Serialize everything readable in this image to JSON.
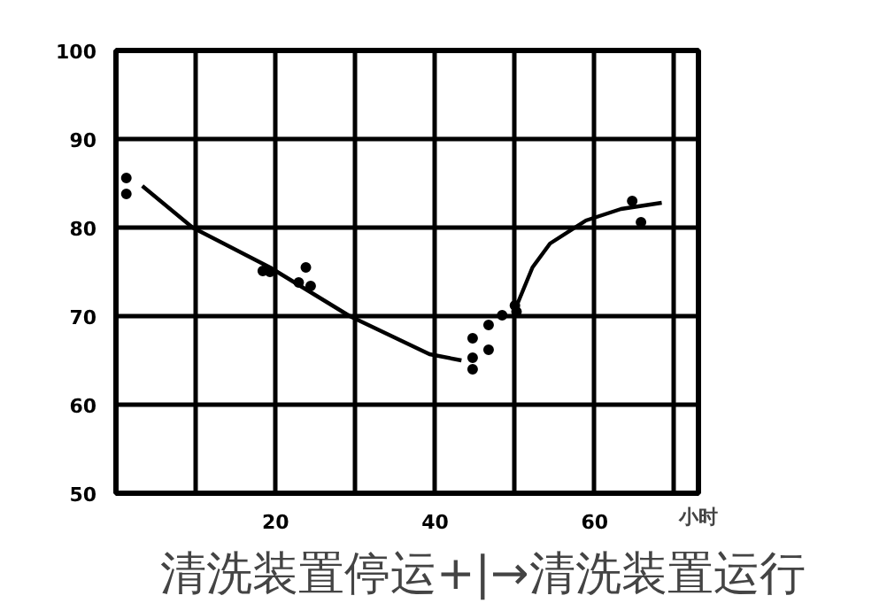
{
  "chart_data": {
    "type": "scatter",
    "xlabel": "小时",
    "annotations": [
      "清洗装置停运+|→清洗装置运行"
    ],
    "xlim": [
      0,
      73
    ],
    "ylim": [
      50,
      100
    ],
    "xticks": [
      {
        "value": 10,
        "label": null
      },
      20,
      {
        "value": 30,
        "label": null
      },
      40,
      {
        "value": 50,
        "label": null
      },
      60,
      {
        "value": 70,
        "label": null
      }
    ],
    "yticks": [
      50,
      60,
      70,
      80,
      90,
      100
    ],
    "grid": true,
    "marker": "circle",
    "series": [
      {
        "color": "#000000",
        "x": [
          1.3,
          1.3,
          18.4,
          19.3,
          22.9,
          23.8,
          24.4,
          44.7,
          44.7,
          44.7,
          46.7,
          46.7,
          48.4,
          50,
          50.2,
          64.7,
          65.8
        ],
        "values": [
          85.6,
          83.8,
          75.1,
          75,
          73.8,
          75.5,
          73.4,
          67.5,
          65.3,
          64,
          69,
          66.2,
          70.1,
          71.2,
          70.5,
          83,
          80.6
        ]
      },
      {
        "type": "line",
        "marker": "none",
        "color": "#000000",
        "x": [
          3.3,
          9.6,
          19.3,
          29.3,
          39.3,
          43.3
        ],
        "values": [
          84.7,
          80,
          75.5,
          70,
          65.7,
          65
        ]
      },
      {
        "type": "line",
        "marker": "none",
        "color": "#000000",
        "x": [
          50,
          52.2,
          54.4,
          58.9,
          63.3,
          68.4
        ],
        "values": [
          70.7,
          75.5,
          78.2,
          80.8,
          82.1,
          82.8
        ]
      }
    ]
  }
}
